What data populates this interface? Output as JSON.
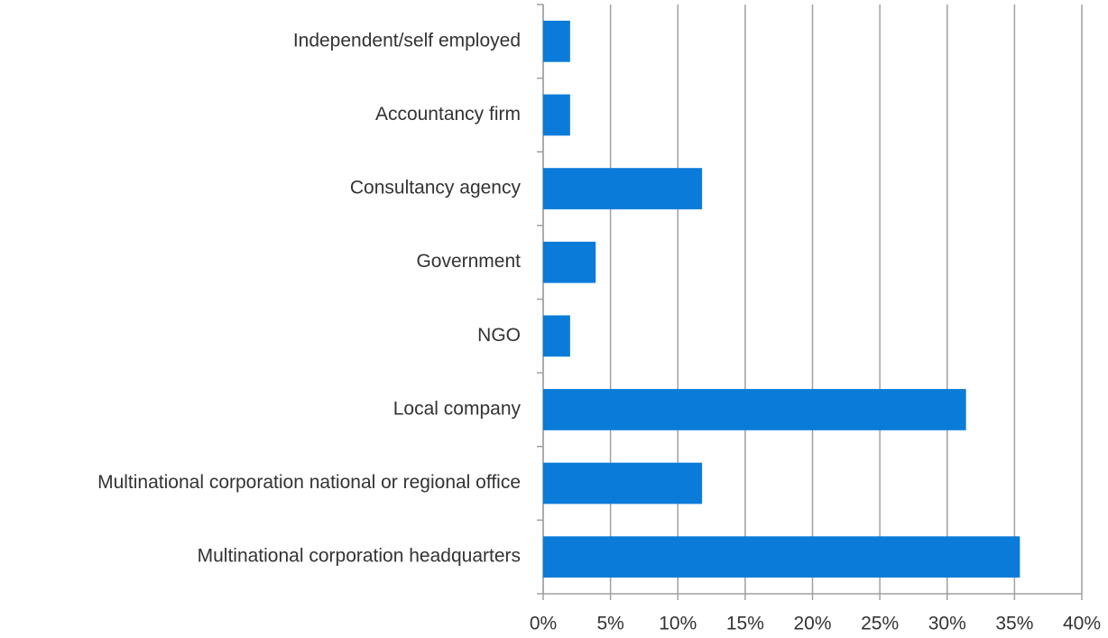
{
  "chart_data": {
    "type": "hbar",
    "categories": [
      "Independent/self employed",
      "Accountancy firm",
      "Consultancy agency",
      "Government",
      "NGO",
      "Local company",
      "Multinational corporation national or regional office",
      "Multinational corporation headquarters"
    ],
    "values": [
      2,
      2,
      11.8,
      3.9,
      2,
      31.4,
      11.8,
      35.4
    ],
    "color": "#0a7bd8",
    "xlim": [
      0,
      40
    ],
    "xticks": [
      {
        "value": 0,
        "label": "0%"
      },
      {
        "value": 5,
        "label": "5%"
      },
      {
        "value": 10,
        "label": "10%"
      },
      {
        "value": 15,
        "label": "15%"
      },
      {
        "value": 20,
        "label": "20%"
      },
      {
        "value": 25,
        "label": "25%"
      },
      {
        "value": 30,
        "label": "30%"
      },
      {
        "value": 35,
        "label": "35%"
      },
      {
        "value": 40,
        "label": "40%"
      }
    ],
    "grid": true
  }
}
